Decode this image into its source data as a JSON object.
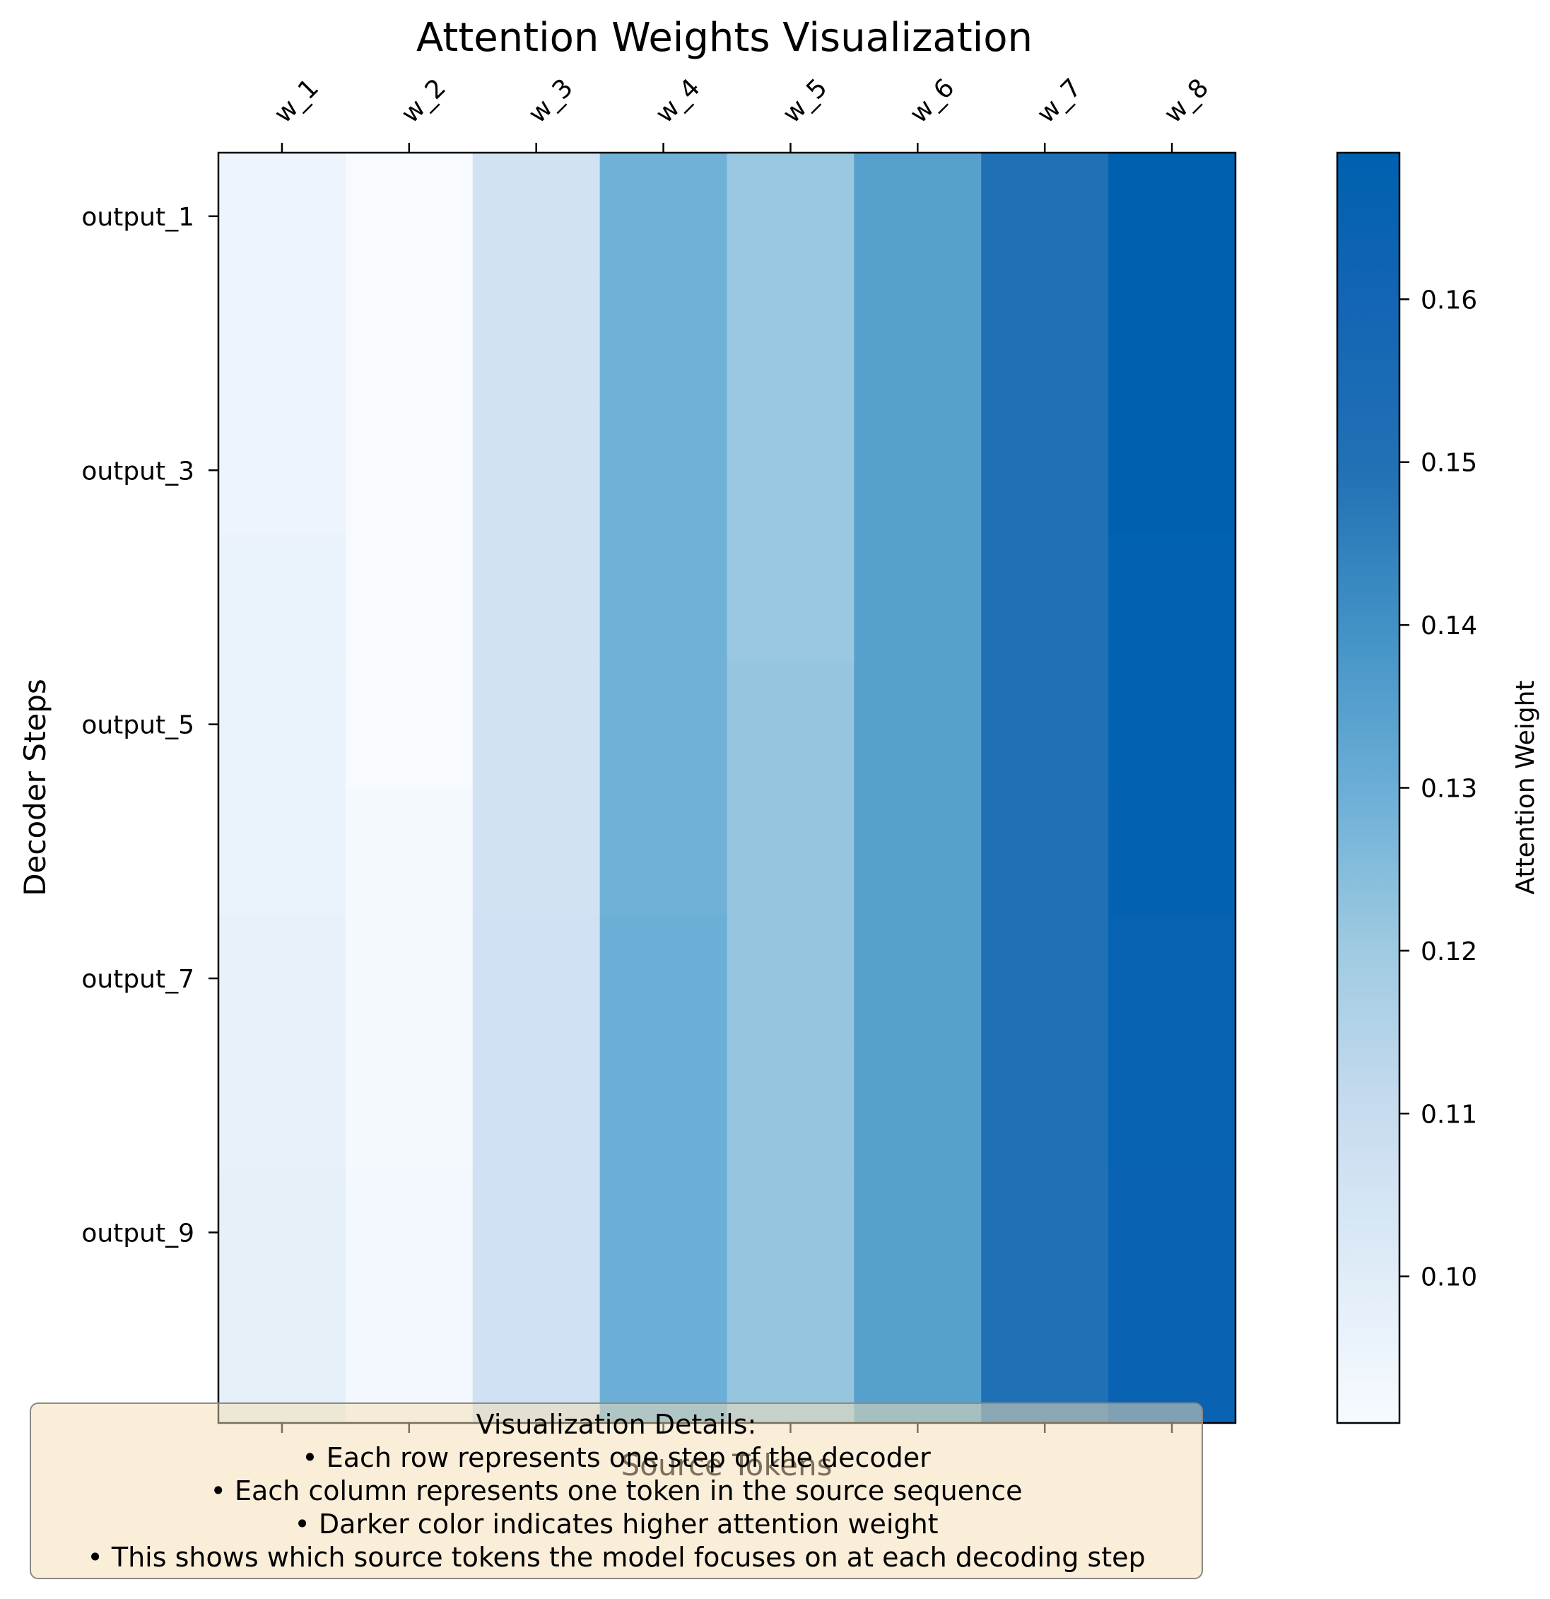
{
  "chart_data": {
    "type": "heatmap",
    "title": "Attention Weights Visualization",
    "xlabel": "Source Tokens",
    "ylabel": "Decoder Steps",
    "x_categories": [
      "w_1",
      "w_2",
      "w_3",
      "w_4",
      "w_5",
      "w_6",
      "w_7",
      "w_8"
    ],
    "y_tick_labels": [
      "output_1",
      "output_3",
      "output_5",
      "output_7",
      "output_9"
    ],
    "row_count": 10,
    "rows": [
      {
        "step": 1,
        "values": [
          0.095,
          0.091,
          0.106,
          0.129,
          0.121,
          0.135,
          0.15,
          0.169
        ]
      },
      {
        "step": 2,
        "values": [
          0.095,
          0.091,
          0.106,
          0.129,
          0.121,
          0.135,
          0.15,
          0.169
        ]
      },
      {
        "step": 3,
        "values": [
          0.095,
          0.091,
          0.106,
          0.129,
          0.121,
          0.135,
          0.15,
          0.169
        ]
      },
      {
        "step": 4,
        "values": [
          0.096,
          0.091,
          0.106,
          0.129,
          0.121,
          0.135,
          0.15,
          0.168
        ]
      },
      {
        "step": 5,
        "values": [
          0.096,
          0.091,
          0.106,
          0.129,
          0.122,
          0.135,
          0.15,
          0.168
        ]
      },
      {
        "step": 6,
        "values": [
          0.096,
          0.092,
          0.106,
          0.129,
          0.122,
          0.135,
          0.15,
          0.167
        ]
      },
      {
        "step": 7,
        "values": [
          0.097,
          0.092,
          0.107,
          0.13,
          0.122,
          0.135,
          0.15,
          0.165
        ]
      },
      {
        "step": 8,
        "values": [
          0.097,
          0.092,
          0.107,
          0.13,
          0.122,
          0.135,
          0.15,
          0.165
        ]
      },
      {
        "step": 9,
        "values": [
          0.098,
          0.093,
          0.107,
          0.13,
          0.122,
          0.135,
          0.15,
          0.164
        ]
      },
      {
        "step": 10,
        "values": [
          0.098,
          0.093,
          0.107,
          0.13,
          0.122,
          0.135,
          0.15,
          0.164
        ]
      }
    ],
    "colorbar": {
      "label": "Attention Weight",
      "colormap": "Blues",
      "range": [
        0.091,
        0.169
      ],
      "ticks": [
        0.1,
        0.11,
        0.12,
        0.13,
        0.14,
        0.15,
        0.16
      ],
      "tick_labels": [
        "0.10",
        "0.11",
        "0.12",
        "0.13",
        "0.14",
        "0.15",
        "0.16"
      ]
    },
    "annotation": {
      "title": "Visualization Details:",
      "lines": [
        "• Each row represents one step of the decoder",
        "• Each column represents one token in the source sequence",
        "• Darker color indicates higher attention weight",
        "• This shows which source tokens the model focuses on at each decoding step"
      ]
    }
  },
  "colors": {
    "low": "#f7fbff",
    "high": "#0060b0",
    "annotation_fill": "#f5deb3",
    "annotation_border": "#8a8a8a"
  }
}
